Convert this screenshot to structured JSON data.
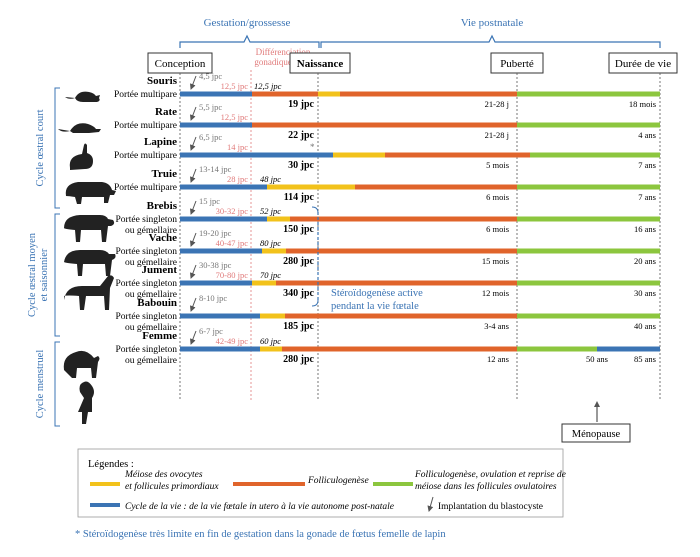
{
  "colors": {
    "blue": "#3b74b4",
    "orange": "#e0642b",
    "yellow": "#f2c21b",
    "green": "#8cc63e",
    "pink": "#e07a7a",
    "gray": "#777777"
  },
  "header": {
    "gestation": "Gestation/grossesse",
    "postnatal": "Vie postnatale",
    "diff_line1": "Différenciation",
    "diff_line2": "gonadique mâle",
    "conception": "Conception",
    "naissance": "Naissance",
    "puberte": "Puberté",
    "duree": "Durée de vie"
  },
  "groups": [
    {
      "label": "Cycle œstral court"
    },
    {
      "label_line1": "Cycle œstral moyen",
      "label_line2": "et saisonnier"
    },
    {
      "label": "Cycle menstruel"
    }
  ],
  "animals": [
    {
      "name": "Souris",
      "sub1": "Portée multipare",
      "sub2": "",
      "implant": "4,5 jpc",
      "diff": "12,5 jpc",
      "meiosis": "12,5 jpc",
      "birth": "19 jpc",
      "puberty": "21-28 j",
      "lifespan": "18 mois",
      "icon": "mouse-icon"
    },
    {
      "name": "Rate",
      "sub1": "Portée multipare",
      "sub2": "",
      "implant": "5,5 jpc",
      "diff": "12,5 jpc",
      "meiosis": "",
      "birth": "22 jpc",
      "puberty": "21-28 j",
      "lifespan": "4 ans",
      "icon": "rat-icon"
    },
    {
      "name": "Lapine",
      "sub1": "Portée multipare",
      "sub2": "",
      "implant": "6,5 jpc",
      "diff": "14 jpc",
      "meiosis": "",
      "birth": "30 jpc",
      "puberty": "5 mois",
      "lifespan": "7 ans",
      "icon": "rabbit-icon",
      "asterisk": "*"
    },
    {
      "name": "Truie",
      "sub1": "Portée multipare",
      "sub2": "",
      "implant": "13-14 jpc",
      "diff": "28 jpc",
      "meiosis": "48 jpc",
      "birth": "114 jpc",
      "puberty": "6 mois",
      "lifespan": "7 ans",
      "icon": "pig-icon"
    },
    {
      "name": "Brebis",
      "sub1": "Portée singleton",
      "sub2": "ou gémellaire",
      "implant": "15 jpc",
      "diff": "30-32 jpc",
      "meiosis": "52 jpc",
      "birth": "150 jpc",
      "puberty": "6 mois",
      "lifespan": "16 ans",
      "icon": "sheep-icon"
    },
    {
      "name": "Vache",
      "sub1": "Portée singleton",
      "sub2": "ou gémellaire",
      "implant": "19-20 jpc",
      "diff": "40-47 jpc",
      "meiosis": "80 jpc",
      "birth": "280 jpc",
      "puberty": "15 mois",
      "lifespan": "20 ans",
      "icon": "cow-icon"
    },
    {
      "name": "Jument",
      "sub1": "Portée singleton",
      "sub2": "ou gémellaire",
      "implant": "30-38 jpc",
      "diff": "70-80 jpc",
      "meiosis": "70 jpc",
      "birth": "340 jpc",
      "puberty": "12 mois",
      "lifespan": "30 ans",
      "icon": "horse-icon"
    },
    {
      "name": "Babouin",
      "sub1": "Portée singleton",
      "sub2": "ou gémellaire",
      "implant": "8-10 jpc",
      "diff": "",
      "meiosis": "",
      "birth": "185 jpc",
      "puberty": "3-4 ans",
      "lifespan": "40 ans",
      "icon": "baboon-icon"
    },
    {
      "name": "Femme",
      "sub1": "Portée singleton",
      "sub2": "ou gémellaire",
      "implant": "6-7 jpc",
      "diff": "42-49 jpc",
      "meiosis": "60 jpc",
      "birth": "280 jpc",
      "puberty": "12 ans",
      "lifespan": "85 ans",
      "menopause_age": "50 ans",
      "icon": "woman-icon"
    }
  ],
  "steroid_line1": "Stéroïdogenèse active",
  "steroid_line2": "pendant la vie fœtale",
  "menopause": "Ménopause",
  "legend": {
    "title": "Légendes :",
    "meiosis_line1": "Méiose des ovocytes",
    "meiosis_line2": "et follicules primordiaux",
    "folliculo": "Folliculogenèse",
    "ovul_line1": "Folliculogenèse, ovulation et reprise de",
    "ovul_line2": "méiose dans les follicules ovulatoires",
    "cycle": "Cycle de la vie : de la vie fœtale in utero à la vie autonome post-natale",
    "implant": "Implantation du blastocyste"
  },
  "footnote": "* Stéroïdogenèse très limite en fin de gestation dans la gonade de fœtus femelle de lapin"
}
